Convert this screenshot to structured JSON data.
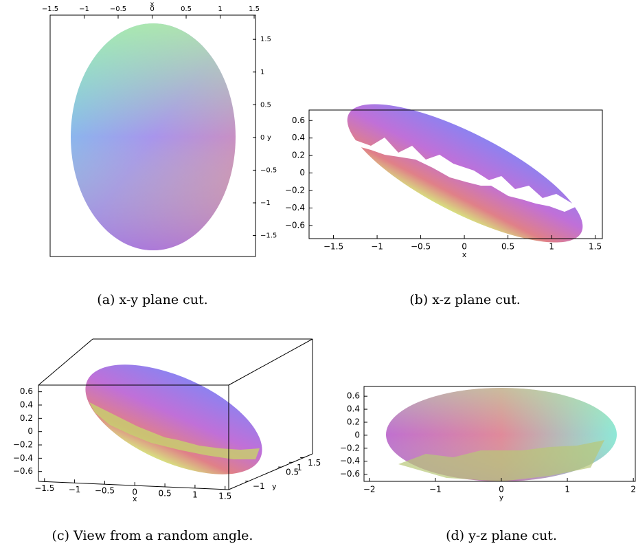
{
  "chart_data": [
    {
      "type": "surface",
      "caption": "(a) x-y plane cut.",
      "xlabel": "x",
      "ylabel": "y",
      "xlim": [
        -1.5,
        1.53
      ],
      "ylim": [
        -1.82,
        1.87
      ],
      "xticks": [
        {
          "value": -1.5,
          "label": "−1.5"
        },
        {
          "value": -1,
          "label": "−1"
        },
        {
          "value": -0.5,
          "label": "−0.5"
        },
        0,
        0.5,
        1,
        1.5
      ],
      "yticks": [
        {
          "value": -1.5,
          "label": "−1.5"
        },
        {
          "value": -1,
          "label": "−1"
        },
        {
          "value": -0.5,
          "label": "−0.5"
        },
        0,
        0.5,
        1,
        1.5
      ]
    },
    {
      "type": "surface",
      "caption": "(b) x-z plane cut.",
      "xlabel": "x",
      "xlim": [
        -1.78,
        1.59
      ],
      "ylim": [
        -0.75,
        0.72
      ],
      "xticks": [
        {
          "value": -1.5,
          "label": "−1.5"
        },
        {
          "value": -1,
          "label": "−1"
        },
        {
          "value": -0.5,
          "label": "−0.5"
        },
        0,
        0.5,
        1,
        1.5
      ],
      "yticks": [
        {
          "value": -0.6,
          "label": "−0.6"
        },
        {
          "value": -0.4,
          "label": "−0.4"
        },
        {
          "value": -0.2,
          "label": "−0.2"
        },
        0,
        0.2,
        0.4,
        0.6
      ]
    },
    {
      "type": "surface3d",
      "caption": "(c) View from a random angle.",
      "xlabel": "x",
      "zlabel": "y",
      "xlim": [
        -1.6,
        1.56
      ],
      "ylim": [
        -0.81,
        0.7
      ],
      "zlim": [
        -1.9,
        1.9
      ],
      "xticks": [
        {
          "value": -1.5,
          "label": "−1.5"
        },
        {
          "value": -1,
          "label": "−1"
        },
        {
          "value": -0.5,
          "label": "−0.5"
        },
        0,
        0.5,
        1,
        1.5
      ],
      "yticks": [
        {
          "value": -0.6,
          "label": "−0.6"
        },
        {
          "value": -0.4,
          "label": "−0.4"
        },
        {
          "value": -0.2,
          "label": "−0.2"
        },
        0,
        0.2,
        0.4,
        0.6
      ],
      "zticks": [
        {
          "value": -1,
          "label": "−1"
        },
        0.5,
        1,
        1.5
      ]
    },
    {
      "type": "surface",
      "caption": "(d) y-z plane cut.",
      "xlabel": "y",
      "xlim": [
        -2.08,
        2.04
      ],
      "ylim": [
        -0.71,
        0.75
      ],
      "xticks": [
        {
          "value": -2,
          "label": "−2"
        },
        {
          "value": -1,
          "label": "−1"
        },
        0,
        1,
        2
      ],
      "yticks": [
        {
          "value": -0.6,
          "label": "−0.6"
        },
        {
          "value": -0.4,
          "label": "−0.4"
        },
        {
          "value": -0.2,
          "label": "−0.2"
        },
        0,
        0.2,
        0.4,
        0.6
      ]
    }
  ]
}
